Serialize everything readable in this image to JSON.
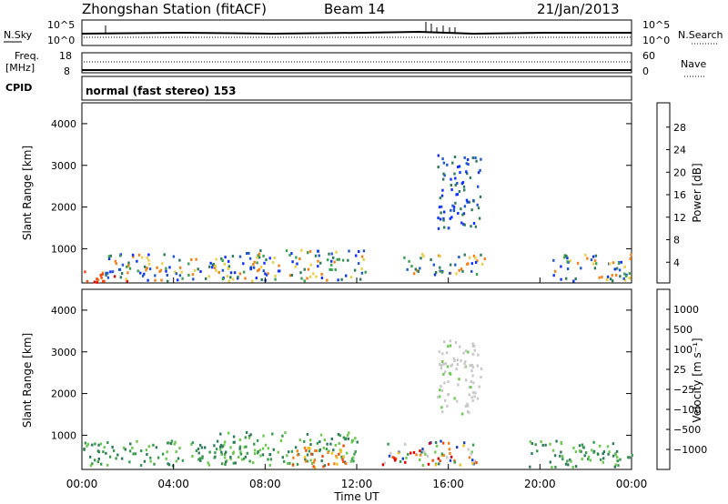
{
  "header": {
    "station": "Zhongshan Station (fitACF)",
    "beam": "Beam 14",
    "date": "21/Jan/2013"
  },
  "top_panels": {
    "nsky_label": "N.Sky",
    "nsky_ticks": [
      "10^5",
      "10^0"
    ],
    "nsearch_label": "N.Search",
    "nsearch_ticks": [
      "10^5",
      "10^0"
    ],
    "freq_label_1": "Freq.",
    "freq_label_2": "[MHz]",
    "freq_ticks": [
      "18",
      "8"
    ],
    "nave_label": "Nave",
    "nave_ticks": [
      "60",
      "0"
    ],
    "cpid_label": "CPID",
    "cpid_text": "normal (fast stereo) 153"
  },
  "chart_data": [
    {
      "type": "heatmap",
      "title": "",
      "xlabel": "Time UT",
      "ylabel": "Slant Range [km]",
      "x_ticks": [
        "00:00",
        "04:00",
        "08:00",
        "12:00",
        "16:00",
        "20:00",
        "00:00"
      ],
      "y_ticks": [
        "1000",
        "2000",
        "3000",
        "4000"
      ],
      "ylim": [
        180,
        4500
      ],
      "colorbar": {
        "label": "Power [dB]",
        "ticks": [
          "4",
          "8",
          "12",
          "16",
          "20",
          "24",
          "28"
        ],
        "colors": [
          "#1030ff",
          "#2058c8",
          "#2f7a5a",
          "#3aa050",
          "#e8d040",
          "#f08018",
          "#f04a10",
          "#e00000"
        ]
      },
      "scatter_regions": [
        {
          "x_hours": [
            0.0,
            2.2
          ],
          "range_km": [
            200,
            480
          ],
          "level": "high"
        },
        {
          "x_hours": [
            1.0,
            6.5
          ],
          "range_km": [
            250,
            900
          ],
          "level": "mid"
        },
        {
          "x_hours": [
            6.0,
            12.5
          ],
          "range_km": [
            250,
            1000
          ],
          "level": "mid"
        },
        {
          "x_hours": [
            14.0,
            17.6
          ],
          "range_km": [
            400,
            900
          ],
          "level": "mid"
        },
        {
          "x_hours": [
            20.5,
            24.0
          ],
          "range_km": [
            250,
            900
          ],
          "level": "mid"
        },
        {
          "x_hours": [
            15.5,
            17.4
          ],
          "range_km": [
            1500,
            3300
          ],
          "level": "low"
        }
      ]
    },
    {
      "type": "heatmap",
      "title": "",
      "xlabel": "Time UT",
      "ylabel": "Slant Range [km]",
      "x_ticks": [
        "00:00",
        "04:00",
        "08:00",
        "12:00",
        "16:00",
        "20:00",
        "00:00"
      ],
      "y_ticks": [
        "1000",
        "2000",
        "3000",
        "4000"
      ],
      "ylim": [
        180,
        4500
      ],
      "colorbar": {
        "label": "Velocity [m s⁻¹]",
        "ticks": [
          "1000",
          "500",
          "100",
          "25",
          "−25",
          "−100",
          "−500",
          "−1000"
        ],
        "colors": [
          "#1840c8",
          "#2f7a5a",
          "#3a9a50",
          "#6cc850",
          "#c8c8c8",
          "#f0c018",
          "#f08018",
          "#f04a10",
          "#e00000"
        ]
      },
      "scatter_regions": [
        {
          "x_hours": [
            0.0,
            7.0
          ],
          "range_km": [
            300,
            900
          ],
          "level": "green"
        },
        {
          "x_hours": [
            6.0,
            12.0
          ],
          "range_km": [
            300,
            1100
          ],
          "level": "green"
        },
        {
          "x_hours": [
            9.0,
            11.5
          ],
          "range_km": [
            250,
            800
          ],
          "level": "orange"
        },
        {
          "x_hours": [
            13.0,
            17.5
          ],
          "range_km": [
            300,
            900
          ],
          "level": "mixed"
        },
        {
          "x_hours": [
            19.5,
            24.0
          ],
          "range_km": [
            250,
            900
          ],
          "level": "green"
        },
        {
          "x_hours": [
            15.5,
            17.4
          ],
          "range_km": [
            1500,
            3300
          ],
          "level": "grey"
        }
      ]
    }
  ]
}
